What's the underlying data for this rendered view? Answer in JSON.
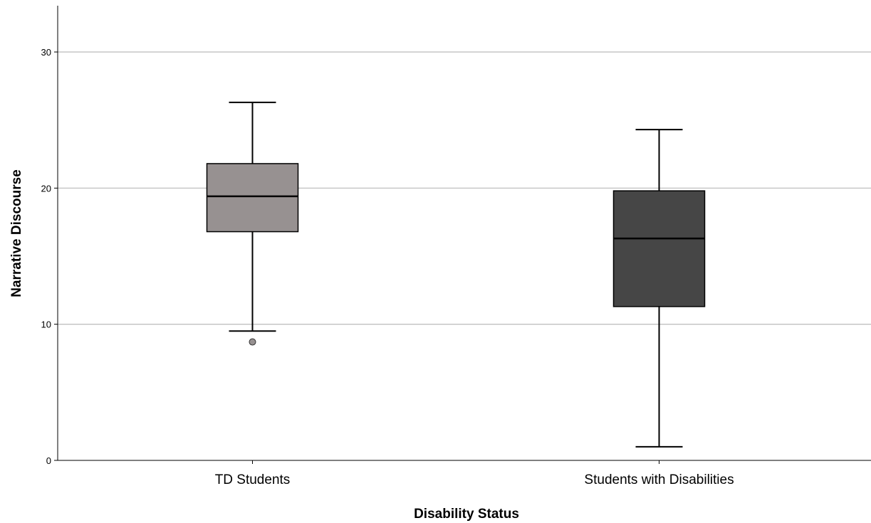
{
  "chart_data": {
    "type": "box",
    "title": "",
    "xlabel": "Disability Status",
    "ylabel": "Narrative Discourse",
    "ylim": [
      0,
      33.4
    ],
    "yticks": [
      0,
      10,
      20,
      30
    ],
    "grid": "horizontal",
    "categories": [
      "TD Students",
      "Students with Disabilities"
    ],
    "boxes": [
      {
        "category": "TD Students",
        "whisker_low": 9.5,
        "q1": 16.8,
        "median": 19.4,
        "q3": 21.8,
        "whisker_high": 26.3,
        "outliers": [
          8.7
        ],
        "color": "#979191"
      },
      {
        "category": "Students with Disabilities",
        "whisker_low": 1.0,
        "q1": 11.3,
        "median": 16.3,
        "q3": 19.8,
        "whisker_high": 24.3,
        "outliers": [],
        "color": "#464646"
      }
    ]
  }
}
